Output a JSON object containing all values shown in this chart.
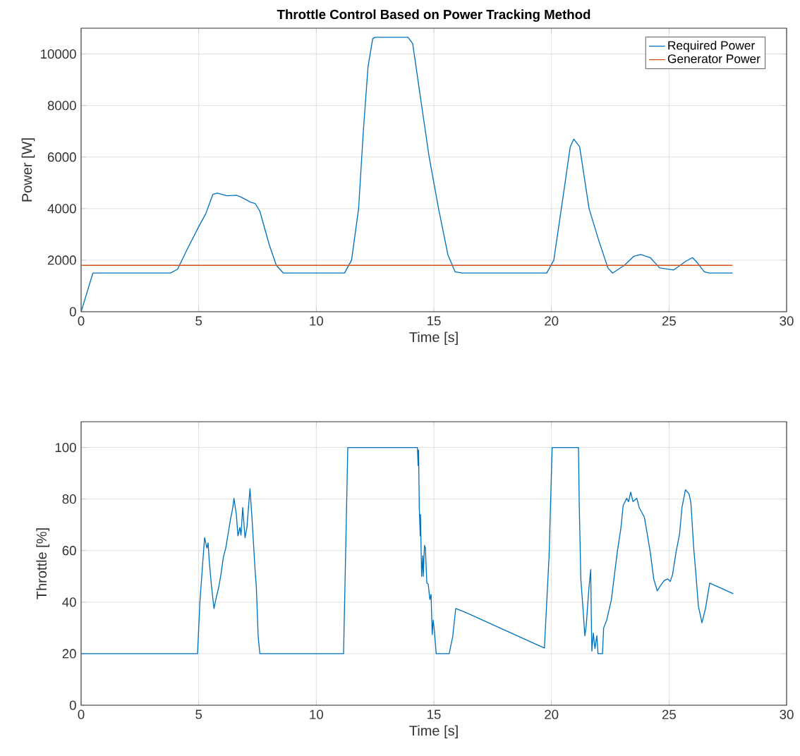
{
  "chart_data": [
    {
      "type": "line",
      "title": "Throttle Control Based on Power Tracking Method",
      "xlabel": "Time [s]",
      "ylabel": "Power [W]",
      "xlim": [
        0,
        30
      ],
      "ylim": [
        0,
        11000
      ],
      "xticks": [
        0,
        5,
        10,
        15,
        20,
        25,
        30
      ],
      "yticks": [
        0,
        2000,
        4000,
        6000,
        8000,
        10000
      ],
      "grid": true,
      "legend": "top right",
      "series": [
        {
          "name": "Required Power",
          "color": "#0072bd",
          "x": [
            0,
            0.5,
            3.8,
            4.1,
            4.5,
            5.0,
            5.3,
            5.6,
            5.8,
            6.2,
            6.6,
            6.8,
            7.0,
            7.2,
            7.4,
            7.6,
            8.0,
            8.3,
            8.6,
            11.2,
            11.5,
            11.8,
            12.0,
            12.2,
            12.4,
            12.5,
            13.9,
            14.1,
            14.4,
            14.8,
            15.2,
            15.6,
            15.9,
            16.2,
            19.8,
            20.1,
            20.5,
            20.8,
            20.95,
            21.2,
            21.6,
            22.0,
            22.4,
            22.6,
            23.1,
            23.5,
            23.8,
            24.2,
            24.6,
            25.2,
            25.7,
            26.0,
            26.2,
            26.5,
            26.7,
            27.7
          ],
          "values": [
            0,
            1500,
            1500,
            1650,
            2400,
            3300,
            3800,
            4550,
            4600,
            4500,
            4520,
            4450,
            4350,
            4250,
            4200,
            3900,
            2600,
            1800,
            1500,
            1500,
            2000,
            4000,
            7000,
            9500,
            10600,
            10650,
            10650,
            10400,
            8500,
            6000,
            4000,
            2200,
            1550,
            1500,
            1500,
            2000,
            4500,
            6400,
            6700,
            6400,
            4000,
            2800,
            1700,
            1500,
            1800,
            2150,
            2220,
            2100,
            1700,
            1620,
            1950,
            2100,
            1900,
            1550,
            1500,
            1500
          ]
        },
        {
          "name": "Generator Power",
          "color": "#d95319",
          "x": [
            0,
            27.7
          ],
          "values": [
            1800,
            1800
          ]
        }
      ]
    },
    {
      "type": "line",
      "xlabel": "Time [s]",
      "ylabel": "Throttle [%]",
      "xlim": [
        0,
        30
      ],
      "ylim": [
        0,
        110
      ],
      "xticks": [
        0,
        5,
        10,
        15,
        20,
        25,
        30
      ],
      "yticks": [
        0,
        20,
        40,
        60,
        80,
        100
      ],
      "grid": true,
      "series": [
        {
          "color": "#0072bd",
          "x": [
            0,
            4.95,
            5.05,
            5.15,
            5.25,
            5.35,
            5.4,
            5.45,
            5.55,
            5.65,
            5.75,
            5.85,
            5.95,
            6.05,
            6.15,
            6.25,
            6.35,
            6.45,
            6.5,
            6.6,
            6.67,
            6.75,
            6.8,
            6.87,
            6.97,
            7.05,
            7.18,
            7.27,
            7.4,
            7.45,
            7.53,
            7.6,
            11.16,
            11.34,
            14.3,
            14.33,
            14.35,
            14.38,
            14.42,
            14.43,
            14.48,
            14.53,
            14.55,
            14.6,
            14.64,
            14.7,
            14.76,
            14.83,
            14.88,
            14.93,
            14.97,
            15.02,
            15.1,
            15.65,
            15.8,
            15.93,
            16.35,
            19.7,
            19.8,
            19.9,
            20.03,
            21.15,
            21.18,
            21.25,
            21.35,
            21.42,
            21.48,
            21.55,
            21.6,
            21.67,
            21.7,
            21.72,
            21.78,
            21.85,
            21.93,
            21.98,
            22.17,
            22.22,
            22.35,
            22.55,
            22.8,
            22.95,
            23.05,
            23.2,
            23.28,
            23.37,
            23.47,
            23.63,
            23.73,
            23.95,
            24.1,
            24.2,
            24.35,
            24.5,
            24.65,
            24.8,
            24.95,
            25.05,
            25.15,
            25.3,
            25.45,
            25.55,
            25.7,
            25.85,
            25.93,
            26.05,
            26.15,
            26.25,
            26.4,
            26.55,
            26.73,
            27.73
          ],
          "values": [
            20,
            20,
            40,
            52.6,
            65,
            61,
            63,
            55.6,
            45.7,
            37.5,
            42,
            45.7,
            51,
            57.5,
            61,
            66.5,
            72,
            76.7,
            80.3,
            74,
            65.7,
            69,
            66,
            76.7,
            65,
            69,
            84,
            72,
            52,
            46,
            26.5,
            20,
            20,
            100,
            100,
            93,
            99,
            76.7,
            65.7,
            74,
            50,
            58,
            50,
            62,
            61,
            47.4,
            47,
            41,
            43,
            27.4,
            33,
            29,
            20,
            20,
            26.5,
            37.5,
            36,
            22.2,
            40,
            58,
            100,
            100,
            79,
            49,
            36.4,
            27,
            31,
            40,
            46,
            52.6,
            31,
            21,
            28,
            22,
            27,
            20,
            20,
            30,
            33,
            41,
            59.5,
            68.5,
            77.5,
            80.3,
            79,
            82.7,
            79,
            80.3,
            76.7,
            73,
            65,
            59.5,
            49,
            44.4,
            46.6,
            48.4,
            49,
            48,
            50.7,
            59.5,
            66.5,
            76.7,
            83.6,
            82,
            78.6,
            61,
            50,
            38.4,
            32,
            37.5,
            47.4,
            43.3
          ]
        }
      ]
    }
  ]
}
